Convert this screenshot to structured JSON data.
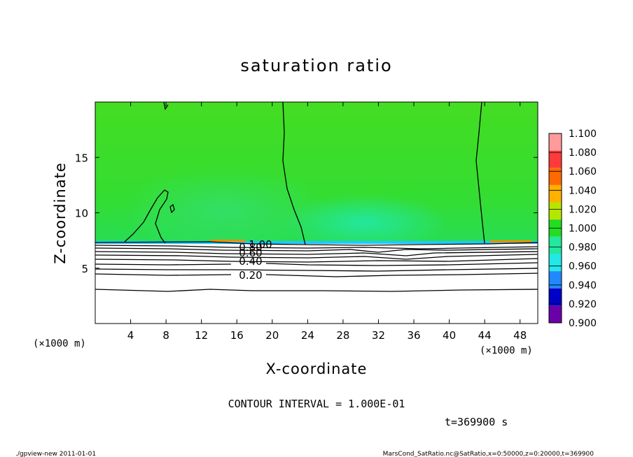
{
  "chart_data": {
    "type": "contour",
    "title": "saturation ratio",
    "xlabel": "X-coordinate",
    "ylabel": "Z-coordinate",
    "x_unit": "(×1000 m)",
    "y_unit": "(×1000 m)",
    "xlim": [
      0,
      50
    ],
    "ylim": [
      0,
      20
    ],
    "x_ticks": [
      4,
      8,
      12,
      16,
      20,
      24,
      28,
      32,
      36,
      40,
      44,
      48
    ],
    "y_ticks": [
      5,
      10,
      15
    ],
    "colorbar": {
      "levels": [
        "1.100",
        "1.080",
        "1.060",
        "1.040",
        "1.020",
        "1.000",
        "0.980",
        "0.960",
        "0.940",
        "0.920",
        "0.900"
      ],
      "colors": [
        "#ff9b9b",
        "#ff3a3a",
        "#ff6a00",
        "#ffb000",
        "#b4e600",
        "#22dd22",
        "#22e8a0",
        "#22e8e8",
        "#2288ff",
        "#0000c8",
        "#6a00a8"
      ]
    },
    "contour_labels": [
      {
        "text": "1.00",
        "x": 18.5,
        "z": 7.2
      },
      {
        "text": "0.80",
        "x": 17.2,
        "z": 6.8
      },
      {
        "text": "0.60",
        "x": 17.2,
        "z": 6.4
      },
      {
        "text": "0.40",
        "x": 17.6,
        "z": 5.6
      },
      {
        "text": "0.20",
        "x": 17.6,
        "z": 4.6
      }
    ],
    "contour_interval": "CONTOUR INTERVAL = 1.000E-01",
    "time_label": "t=369900 s"
  },
  "footer": {
    "left": "./gpview-new  2011-01-01",
    "right": "MarsCond_SatRatio.nc@SatRatio,x=0:50000,z=0:20000,t=369900"
  }
}
